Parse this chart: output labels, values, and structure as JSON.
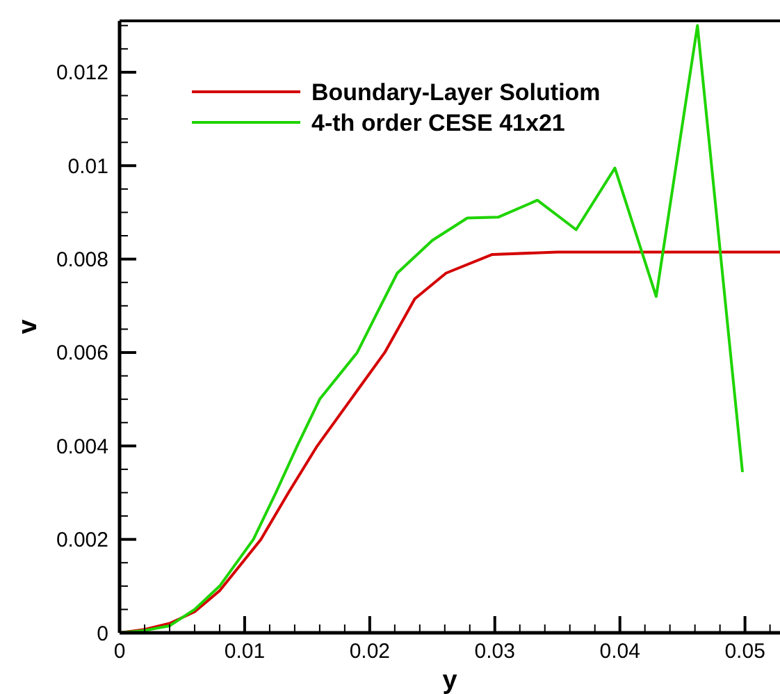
{
  "chart_data": {
    "type": "line",
    "xlabel": "y",
    "ylabel": "v",
    "xlim": [
      0,
      0.0528
    ],
    "ylim": [
      0,
      0.0131
    ],
    "xticks": [
      0,
      {
        "value": 0.002,
        "label": null
      },
      {
        "value": 0.004,
        "label": null
      },
      {
        "value": 0.006,
        "label": null
      },
      {
        "value": 0.008,
        "label": null
      },
      0.01,
      {
        "value": 0.012,
        "label": null
      },
      {
        "value": 0.014,
        "label": null
      },
      {
        "value": 0.016,
        "label": null
      },
      {
        "value": 0.018,
        "label": null
      },
      0.02,
      {
        "value": 0.022,
        "label": null
      },
      {
        "value": 0.024,
        "label": null
      },
      {
        "value": 0.026,
        "label": null
      },
      {
        "value": 0.028,
        "label": null
      },
      0.03,
      {
        "value": 0.032,
        "label": null
      },
      {
        "value": 0.034,
        "label": null
      },
      {
        "value": 0.036,
        "label": null
      },
      {
        "value": 0.038,
        "label": null
      },
      0.04,
      {
        "value": 0.042,
        "label": null
      },
      {
        "value": 0.044,
        "label": null
      },
      {
        "value": 0.046,
        "label": null
      },
      {
        "value": 0.048,
        "label": null
      },
      0.05,
      {
        "value": 0.052,
        "label": null
      }
    ],
    "yticks": [
      0,
      {
        "value": 0.0005,
        "label": null
      },
      {
        "value": 0.001,
        "label": null
      },
      {
        "value": 0.0015,
        "label": null
      },
      0.002,
      {
        "value": 0.0025,
        "label": null
      },
      {
        "value": 0.003,
        "label": null
      },
      {
        "value": 0.0035,
        "label": null
      },
      0.004,
      {
        "value": 0.0045,
        "label": null
      },
      {
        "value": 0.005,
        "label": null
      },
      {
        "value": 0.0055,
        "label": null
      },
      0.006,
      {
        "value": 0.0065,
        "label": null
      },
      {
        "value": 0.007,
        "label": null
      },
      {
        "value": 0.0075,
        "label": null
      },
      0.008,
      {
        "value": 0.0085,
        "label": null
      },
      {
        "value": 0.009,
        "label": null
      },
      {
        "value": 0.0095,
        "label": null
      },
      0.01,
      {
        "value": 0.0105,
        "label": null
      },
      {
        "value": 0.011,
        "label": null
      },
      {
        "value": 0.0115,
        "label": null
      },
      0.012,
      {
        "value": 0.0125,
        "label": null
      },
      {
        "value": 0.013,
        "label": null
      }
    ],
    "legend": "top left",
    "grid": false,
    "marker": "none",
    "line_style": "solid",
    "series": [
      {
        "name": "Boundary-Layer Solutiom",
        "color": "#d40000",
        "x": [
          0,
          0.002,
          0.004,
          0.006,
          0.008,
          0.0113,
          0.0135,
          0.0158,
          0.0185,
          0.0212,
          0.0236,
          0.0261,
          0.0298,
          0.035,
          0.0528
        ],
        "values": [
          0,
          7e-05,
          0.0002,
          0.00045,
          0.0009,
          0.002,
          0.003,
          0.004,
          0.005,
          0.006,
          0.00715,
          0.0077,
          0.0081,
          0.00815,
          0.00815
        ]
      },
      {
        "name": "4-th order CESE 41x21",
        "color": "#1ed400",
        "x": [
          0,
          0.002,
          0.004,
          0.006,
          0.008,
          0.0107,
          0.0125,
          0.0142,
          0.016,
          0.019,
          0.0205,
          0.0222,
          0.025,
          0.0278,
          0.0303,
          0.0334,
          0.0365,
          0.0396,
          0.0429,
          0.0462,
          0.0498
        ],
        "values": [
          0,
          5e-05,
          0.00015,
          0.0005,
          0.001,
          0.002,
          0.003,
          0.004,
          0.005,
          0.006,
          0.0068,
          0.0077,
          0.0084,
          0.00888,
          0.0089,
          0.00926,
          0.00863,
          0.00995,
          0.0072,
          0.013,
          0.00344
        ]
      }
    ]
  }
}
